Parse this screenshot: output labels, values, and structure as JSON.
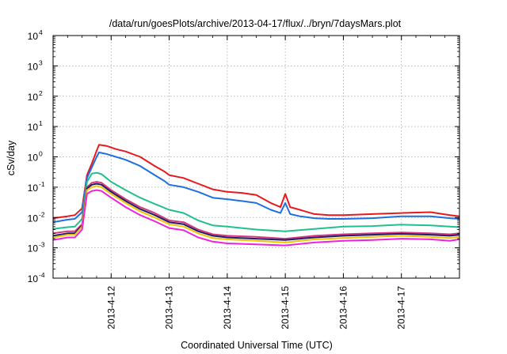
{
  "chart_data": {
    "type": "line",
    "title": "/data/run/goesPlots/archive/2013-04-17/flux/../bryn/7daysMars.plot",
    "xlabel": "Coordinated Universal Time (UTC)",
    "ylabel": "cSv/day",
    "y_scale": "log",
    "ylim": [
      0.0001,
      10000
    ],
    "xlim": [
      "2013-04-11 00:00",
      "2013-04-18 00:00"
    ],
    "grid": true,
    "legend": "none",
    "y_ticks": [
      {
        "base": "10",
        "exp": "-4",
        "value": 0.0001
      },
      {
        "base": "10",
        "exp": "-3",
        "value": 0.001
      },
      {
        "base": "10",
        "exp": "-2",
        "value": 0.01
      },
      {
        "base": "10",
        "exp": "-1",
        "value": 0.1
      },
      {
        "base": "10",
        "exp": "0",
        "value": 1
      },
      {
        "base": "10",
        "exp": "1",
        "value": 10
      },
      {
        "base": "10",
        "exp": "2",
        "value": 100
      },
      {
        "base": "10",
        "exp": "3",
        "value": 1000
      },
      {
        "base": "10",
        "exp": "4",
        "value": 10000
      }
    ],
    "x_ticks": [
      {
        "label": "2013-4-12",
        "value": "2013-04-12 00:00"
      },
      {
        "label": "2013-4-13",
        "value": "2013-04-13 00:00"
      },
      {
        "label": "2013-4-14",
        "value": "2013-04-14 00:00"
      },
      {
        "label": "2013-4-15",
        "value": "2013-04-15 00:00"
      },
      {
        "label": "2013-4-16",
        "value": "2013-04-16 00:00"
      },
      {
        "label": "2013-4-17",
        "value": "2013-04-17 00:00"
      }
    ],
    "series": [
      {
        "color": "#e8191e",
        "points": [
          [
            "2013-04-11 00:00",
            0.0095
          ],
          [
            "2013-04-11 06:00",
            0.011
          ],
          [
            "2013-04-11 09:00",
            0.012
          ],
          [
            "2013-04-11 12:00",
            0.02
          ],
          [
            "2013-04-11 14:00",
            0.25
          ],
          [
            "2013-04-11 16:00",
            0.6
          ],
          [
            "2013-04-11 18:00",
            1.6
          ],
          [
            "2013-04-11 19:00",
            2.5
          ],
          [
            "2013-04-11 22:00",
            2.3
          ],
          [
            "2013-04-12 02:00",
            1.8
          ],
          [
            "2013-04-12 06:00",
            1.5
          ],
          [
            "2013-04-12 12:00",
            1.0
          ],
          [
            "2013-04-12 18:00",
            0.5
          ],
          [
            "2013-04-12 22:00",
            0.33
          ],
          [
            "2013-04-13 00:00",
            0.25
          ],
          [
            "2013-04-13 06:00",
            0.2
          ],
          [
            "2013-04-13 12:00",
            0.13
          ],
          [
            "2013-04-13 18:00",
            0.085
          ],
          [
            "2013-04-14 00:00",
            0.07
          ],
          [
            "2013-04-14 06:00",
            0.065
          ],
          [
            "2013-04-14 12:00",
            0.055
          ],
          [
            "2013-04-14 18:00",
            0.03
          ],
          [
            "2013-04-14 22:00",
            0.022
          ],
          [
            "2013-04-15 00:00",
            0.06
          ],
          [
            "2013-04-15 02:00",
            0.022
          ],
          [
            "2013-04-15 06:00",
            0.018
          ],
          [
            "2013-04-15 12:00",
            0.013
          ],
          [
            "2013-04-15 18:00",
            0.012
          ],
          [
            "2013-04-16 00:00",
            0.012
          ],
          [
            "2013-04-16 12:00",
            0.013
          ],
          [
            "2013-04-17 00:00",
            0.014
          ],
          [
            "2013-04-17 12:00",
            0.015
          ],
          [
            "2013-04-17 20:00",
            0.012
          ],
          [
            "2013-04-18 00:00",
            0.011
          ]
        ]
      },
      {
        "color": "#1f6fe0",
        "points": [
          [
            "2013-04-11 00:00",
            0.007
          ],
          [
            "2013-04-11 06:00",
            0.0085
          ],
          [
            "2013-04-11 09:00",
            0.009
          ],
          [
            "2013-04-11 12:00",
            0.015
          ],
          [
            "2013-04-11 14:00",
            0.2
          ],
          [
            "2013-04-11 16:00",
            0.45
          ],
          [
            "2013-04-11 18:00",
            1.0
          ],
          [
            "2013-04-11 19:00",
            1.4
          ],
          [
            "2013-04-11 22:00",
            1.25
          ],
          [
            "2013-04-12 02:00",
            1.0
          ],
          [
            "2013-04-12 06:00",
            0.8
          ],
          [
            "2013-04-12 12:00",
            0.5
          ],
          [
            "2013-04-12 18:00",
            0.25
          ],
          [
            "2013-04-12 22:00",
            0.16
          ],
          [
            "2013-04-13 00:00",
            0.12
          ],
          [
            "2013-04-13 06:00",
            0.1
          ],
          [
            "2013-04-13 12:00",
            0.07
          ],
          [
            "2013-04-13 18:00",
            0.045
          ],
          [
            "2013-04-14 00:00",
            0.04
          ],
          [
            "2013-04-14 06:00",
            0.035
          ],
          [
            "2013-04-14 12:00",
            0.03
          ],
          [
            "2013-04-14 18:00",
            0.018
          ],
          [
            "2013-04-14 22:00",
            0.014
          ],
          [
            "2013-04-15 00:00",
            0.03
          ],
          [
            "2013-04-15 02:00",
            0.013
          ],
          [
            "2013-04-15 06:00",
            0.011
          ],
          [
            "2013-04-15 12:00",
            0.0095
          ],
          [
            "2013-04-15 18:00",
            0.009
          ],
          [
            "2013-04-16 00:00",
            0.009
          ],
          [
            "2013-04-16 12:00",
            0.0095
          ],
          [
            "2013-04-17 00:00",
            0.011
          ],
          [
            "2013-04-17 12:00",
            0.011
          ],
          [
            "2013-04-17 20:00",
            0.0095
          ],
          [
            "2013-04-18 00:00",
            0.009
          ]
        ]
      },
      {
        "color": "#1fbf8f",
        "points": [
          [
            "2013-04-11 00:00",
            0.0042
          ],
          [
            "2013-04-11 06:00",
            0.0048
          ],
          [
            "2013-04-11 09:00",
            0.005
          ],
          [
            "2013-04-11 12:00",
            0.009
          ],
          [
            "2013-04-11 14:00",
            0.15
          ],
          [
            "2013-04-11 16:00",
            0.28
          ],
          [
            "2013-04-11 18:00",
            0.3
          ],
          [
            "2013-04-11 20:00",
            0.27
          ],
          [
            "2013-04-12 00:00",
            0.15
          ],
          [
            "2013-04-12 06:00",
            0.08
          ],
          [
            "2013-04-12 12:00",
            0.045
          ],
          [
            "2013-04-12 18:00",
            0.028
          ],
          [
            "2013-04-13 00:00",
            0.018
          ],
          [
            "2013-04-13 06:00",
            0.014
          ],
          [
            "2013-04-13 12:00",
            0.008
          ],
          [
            "2013-04-13 18:00",
            0.0055
          ],
          [
            "2013-04-14 00:00",
            0.005
          ],
          [
            "2013-04-14 12:00",
            0.004
          ],
          [
            "2013-04-15 00:00",
            0.0035
          ],
          [
            "2013-04-15 12:00",
            0.0042
          ],
          [
            "2013-04-16 00:00",
            0.005
          ],
          [
            "2013-04-16 12:00",
            0.0052
          ],
          [
            "2013-04-17 00:00",
            0.0058
          ],
          [
            "2013-04-17 12:00",
            0.0055
          ],
          [
            "2013-04-17 20:00",
            0.005
          ],
          [
            "2013-04-18 00:00",
            0.0048
          ]
        ]
      },
      {
        "color": "#d5377f",
        "points": [
          [
            "2013-04-11 00:00",
            0.003
          ],
          [
            "2013-04-11 06:00",
            0.0035
          ],
          [
            "2013-04-11 09:00",
            0.0035
          ],
          [
            "2013-04-11 12:00",
            0.006
          ],
          [
            "2013-04-11 14:00",
            0.1
          ],
          [
            "2013-04-11 16:00",
            0.14
          ],
          [
            "2013-04-11 18:00",
            0.15
          ],
          [
            "2013-04-11 20:00",
            0.14
          ],
          [
            "2013-04-12 00:00",
            0.08
          ],
          [
            "2013-04-12 06:00",
            0.04
          ],
          [
            "2013-04-12 12:00",
            0.022
          ],
          [
            "2013-04-12 18:00",
            0.014
          ],
          [
            "2013-04-13 00:00",
            0.008
          ],
          [
            "2013-04-13 06:00",
            0.007
          ],
          [
            "2013-04-13 12:00",
            0.004
          ],
          [
            "2013-04-13 18:00",
            0.0028
          ],
          [
            "2013-04-14 00:00",
            0.0025
          ],
          [
            "2013-04-14 12:00",
            0.0023
          ],
          [
            "2013-04-15 00:00",
            0.002
          ],
          [
            "2013-04-15 12:00",
            0.0025
          ],
          [
            "2013-04-16 00:00",
            0.0028
          ],
          [
            "2013-04-16 12:00",
            0.003
          ],
          [
            "2013-04-17 00:00",
            0.0032
          ],
          [
            "2013-04-17 12:00",
            0.003
          ],
          [
            "2013-04-17 20:00",
            0.0028
          ],
          [
            "2013-04-18 00:00",
            0.003
          ]
        ]
      },
      {
        "color": "#1a1f6e",
        "points": [
          [
            "2013-04-11 00:00",
            0.0025
          ],
          [
            "2013-04-11 06:00",
            0.003
          ],
          [
            "2013-04-11 09:00",
            0.003
          ],
          [
            "2013-04-11 12:00",
            0.0055
          ],
          [
            "2013-04-11 14:00",
            0.09
          ],
          [
            "2013-04-11 16:00",
            0.12
          ],
          [
            "2013-04-11 18:00",
            0.13
          ],
          [
            "2013-04-11 20:00",
            0.12
          ],
          [
            "2013-04-12 00:00",
            0.07
          ],
          [
            "2013-04-12 06:00",
            0.035
          ],
          [
            "2013-04-12 12:00",
            0.019
          ],
          [
            "2013-04-12 18:00",
            0.012
          ],
          [
            "2013-04-13 00:00",
            0.007
          ],
          [
            "2013-04-13 06:00",
            0.006
          ],
          [
            "2013-04-13 12:00",
            0.0035
          ],
          [
            "2013-04-13 18:00",
            0.0025
          ],
          [
            "2013-04-14 00:00",
            0.0022
          ],
          [
            "2013-04-14 12:00",
            0.002
          ],
          [
            "2013-04-15 00:00",
            0.0018
          ],
          [
            "2013-04-15 12:00",
            0.0022
          ],
          [
            "2013-04-16 00:00",
            0.0025
          ],
          [
            "2013-04-16 12:00",
            0.0027
          ],
          [
            "2013-04-17 00:00",
            0.0029
          ],
          [
            "2013-04-17 12:00",
            0.0027
          ],
          [
            "2013-04-17 20:00",
            0.0025
          ],
          [
            "2013-04-18 00:00",
            0.0027
          ]
        ]
      },
      {
        "color": "#f2c400",
        "points": [
          [
            "2013-04-11 00:00",
            0.0022
          ],
          [
            "2013-04-11 06:00",
            0.0027
          ],
          [
            "2013-04-11 09:00",
            0.0027
          ],
          [
            "2013-04-11 12:00",
            0.005
          ],
          [
            "2013-04-11 14:00",
            0.08
          ],
          [
            "2013-04-11 16:00",
            0.1
          ],
          [
            "2013-04-11 18:00",
            0.11
          ],
          [
            "2013-04-11 20:00",
            0.1
          ],
          [
            "2013-04-12 00:00",
            0.06
          ],
          [
            "2013-04-12 06:00",
            0.03
          ],
          [
            "2013-04-12 12:00",
            0.016
          ],
          [
            "2013-04-12 18:00",
            0.01
          ],
          [
            "2013-04-13 00:00",
            0.006
          ],
          [
            "2013-04-13 06:00",
            0.005
          ],
          [
            "2013-04-13 12:00",
            0.003
          ],
          [
            "2013-04-13 18:00",
            0.0021
          ],
          [
            "2013-04-14 00:00",
            0.0019
          ],
          [
            "2013-04-14 12:00",
            0.0017
          ],
          [
            "2013-04-15 00:00",
            0.0015
          ],
          [
            "2013-04-15 12:00",
            0.0019
          ],
          [
            "2013-04-16 00:00",
            0.0021
          ],
          [
            "2013-04-16 12:00",
            0.0023
          ],
          [
            "2013-04-17 00:00",
            0.0025
          ],
          [
            "2013-04-17 12:00",
            0.0023
          ],
          [
            "2013-04-17 20:00",
            0.0021
          ],
          [
            "2013-04-18 00:00",
            0.0023
          ]
        ]
      },
      {
        "color": "#ee22dd",
        "points": [
          [
            "2013-04-11 00:00",
            0.0018
          ],
          [
            "2013-04-11 06:00",
            0.0022
          ],
          [
            "2013-04-11 09:00",
            0.0022
          ],
          [
            "2013-04-11 12:00",
            0.004
          ],
          [
            "2013-04-11 14:00",
            0.06
          ],
          [
            "2013-04-11 16:00",
            0.075
          ],
          [
            "2013-04-11 18:00",
            0.08
          ],
          [
            "2013-04-11 20:00",
            0.075
          ],
          [
            "2013-04-12 00:00",
            0.045
          ],
          [
            "2013-04-12 06:00",
            0.022
          ],
          [
            "2013-04-12 12:00",
            0.012
          ],
          [
            "2013-04-12 18:00",
            0.0075
          ],
          [
            "2013-04-13 00:00",
            0.0045
          ],
          [
            "2013-04-13 06:00",
            0.0038
          ],
          [
            "2013-04-13 12:00",
            0.0022
          ],
          [
            "2013-04-13 18:00",
            0.0016
          ],
          [
            "2013-04-14 00:00",
            0.0014
          ],
          [
            "2013-04-14 12:00",
            0.0013
          ],
          [
            "2013-04-15 00:00",
            0.0012
          ],
          [
            "2013-04-15 12:00",
            0.0015
          ],
          [
            "2013-04-16 00:00",
            0.0017
          ],
          [
            "2013-04-16 12:00",
            0.0018
          ],
          [
            "2013-04-17 00:00",
            0.002
          ],
          [
            "2013-04-17 12:00",
            0.0019
          ],
          [
            "2013-04-17 20:00",
            0.0017
          ],
          [
            "2013-04-18 00:00",
            0.0019
          ]
        ]
      }
    ]
  }
}
